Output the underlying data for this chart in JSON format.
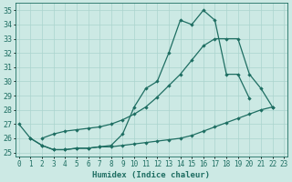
{
  "line1_x": [
    0,
    1,
    2,
    3,
    4,
    5,
    6,
    7,
    8,
    9,
    10,
    11,
    12,
    13,
    14,
    15,
    16,
    17,
    18,
    19,
    20
  ],
  "line1_y": [
    27.0,
    26.0,
    25.5,
    25.2,
    25.2,
    25.3,
    25.3,
    25.4,
    25.5,
    26.3,
    28.2,
    29.5,
    30.0,
    32.0,
    34.3,
    34.0,
    35.0,
    34.3,
    30.5,
    30.5,
    28.8
  ],
  "line2_x": [
    2,
    3,
    4,
    5,
    6,
    7,
    8,
    9,
    10,
    11,
    12,
    13,
    14,
    15,
    16,
    17,
    18,
    19,
    20,
    21,
    22
  ],
  "line2_y": [
    26.0,
    26.3,
    26.5,
    26.6,
    26.7,
    26.8,
    27.0,
    27.3,
    27.7,
    28.2,
    28.9,
    29.7,
    30.5,
    31.5,
    32.5,
    33.0,
    33.0,
    33.0,
    30.5,
    29.5,
    28.2
  ],
  "line3_x": [
    1,
    2,
    3,
    4,
    5,
    6,
    7,
    8,
    9,
    10,
    11,
    12,
    13,
    14,
    15,
    16,
    17,
    18,
    19,
    20,
    21,
    22
  ],
  "line3_y": [
    26.0,
    25.5,
    25.2,
    25.2,
    25.3,
    25.3,
    25.4,
    25.4,
    25.5,
    25.6,
    25.7,
    25.8,
    25.9,
    26.0,
    26.2,
    26.5,
    26.8,
    27.1,
    27.4,
    27.7,
    28.0,
    28.2
  ],
  "xlim": [
    -0.3,
    23.3
  ],
  "ylim": [
    24.7,
    35.5
  ],
  "yticks": [
    25,
    26,
    27,
    28,
    29,
    30,
    31,
    32,
    33,
    34,
    35
  ],
  "xticks": [
    0,
    1,
    2,
    3,
    4,
    5,
    6,
    7,
    8,
    9,
    10,
    11,
    12,
    13,
    14,
    15,
    16,
    17,
    18,
    19,
    20,
    21,
    22,
    23
  ],
  "xlabel": "Humidex (Indice chaleur)",
  "bg_color": "#cce9e4",
  "grid_color": "#aad4ce",
  "line_color": "#1e6e62",
  "tick_fontsize": 5.5,
  "xlabel_fontsize": 6.5
}
